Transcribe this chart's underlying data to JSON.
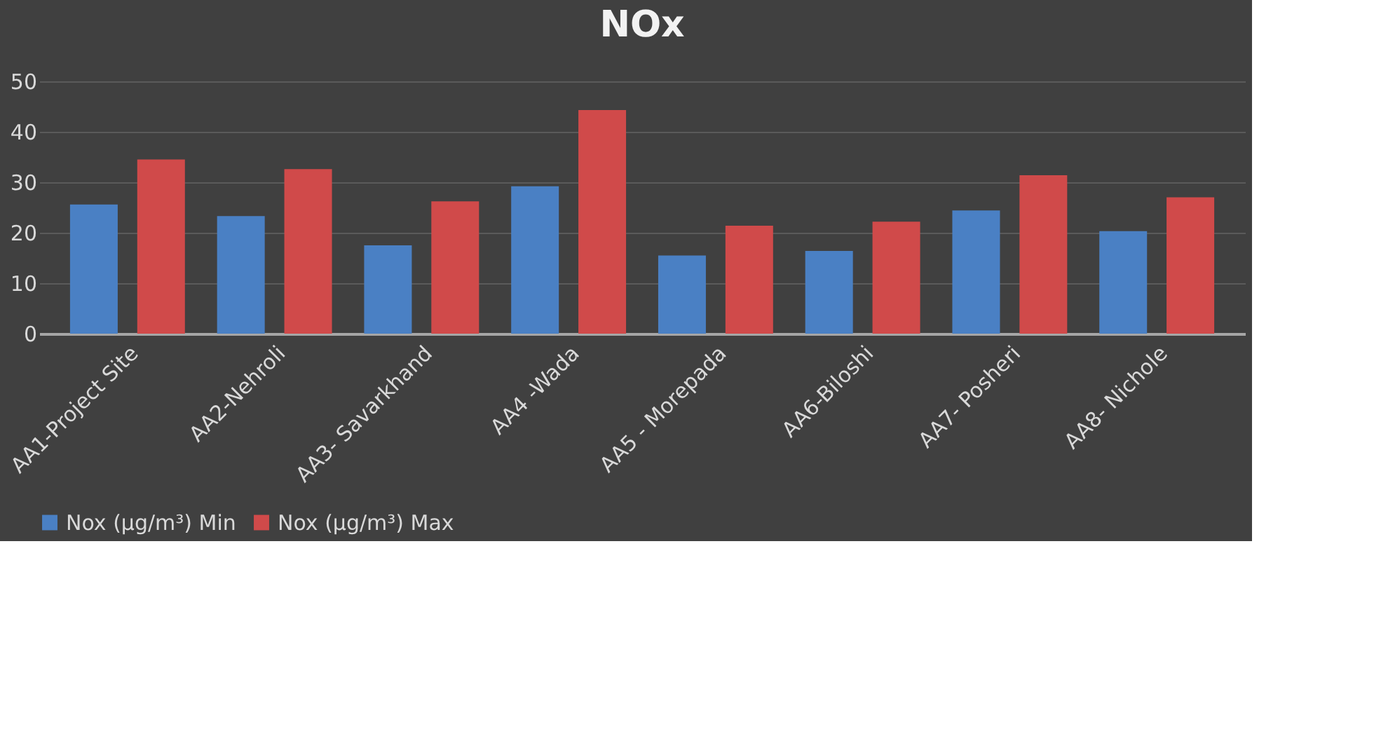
{
  "chart_data": {
    "type": "bar",
    "title": "NOx",
    "categories": [
      "AA1-Project Site",
      "AA2-Nehroli",
      "AA3- Savarkhand",
      "AA4 -Wada",
      "AA5 - Morepada",
      "AA6-Biloshi",
      "AA7- Posheri",
      "AA8- Nichole"
    ],
    "series": [
      {
        "name": "Nox (µg/m³) Min",
        "color": "#4a80c4",
        "values": [
          25.6,
          23.3,
          17.5,
          29.2,
          15.5,
          16.4,
          24.4,
          20.3
        ]
      },
      {
        "name": "Nox (µg/m³) Max",
        "color": "#d04a4a",
        "values": [
          34.5,
          32.6,
          26.2,
          44.3,
          21.4,
          22.2,
          31.4,
          27.0
        ]
      }
    ],
    "ylim": [
      0,
      50
    ],
    "yticks": [
      0,
      10,
      20,
      30,
      40,
      50
    ],
    "grid": "y",
    "legend": "bottom"
  }
}
